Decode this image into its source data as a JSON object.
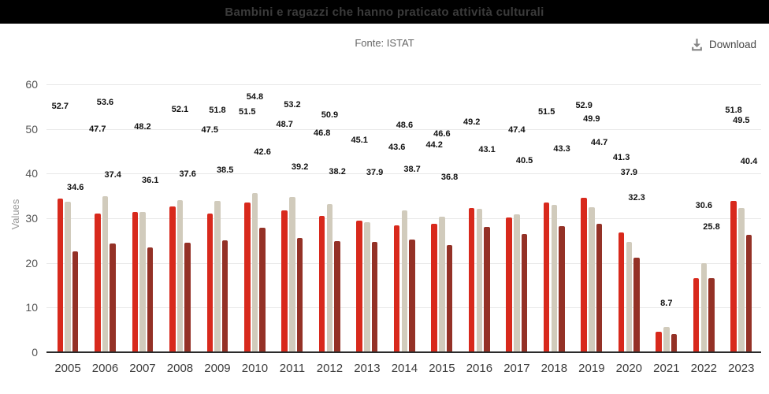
{
  "header": {
    "title": "Bambini e ragazzi che hanno praticato attività culturali"
  },
  "meta": {
    "source": "Fonte: ISTAT"
  },
  "toolbar": {
    "download_label": "Download",
    "download_icon": "download-tray-arrow"
  },
  "colors": {
    "title_bar_bg": "#000000",
    "title_text": "#3b3b3b",
    "series_red": "#d8291c",
    "series_beige": "#d1cbbc",
    "series_brown": "#943126",
    "gridline": "#e8e8e8",
    "axis_line": "#2b2b2b",
    "ytick_text": "#555555",
    "xtick_text": "#3c3c3c",
    "ylabel_text": "#999999",
    "source_text": "#666666",
    "data_label_text": "#111111"
  },
  "chart_data": {
    "type": "bar",
    "title": "Bambini e ragazzi che hanno praticato attività culturali",
    "subtitle": "Fonte: ISTAT",
    "xlabel": "",
    "ylabel": "Values",
    "ylim": [
      0,
      60
    ],
    "yticks": [
      0,
      10,
      20,
      30,
      40,
      50,
      60
    ],
    "grid": true,
    "legend_position": "none",
    "categories": [
      2005,
      2006,
      2007,
      2008,
      2009,
      2010,
      2011,
      2012,
      2013,
      2014,
      2015,
      2016,
      2017,
      2018,
      2019,
      2020,
      2021,
      2022,
      2023
    ],
    "series": [
      {
        "name": "red",
        "color": "#d8291c",
        "data_labels": [
          52.7,
          47.7,
          null,
          null,
          47.5,
          51.5,
          48.7,
          46.8,
          45.1,
          43.6,
          44.2,
          49.2,
          null,
          51.5,
          52.9,
          41.3,
          null,
          null,
          51.8
        ],
        "bar_tops": [
          34.4,
          31.1,
          31.4,
          32.6,
          31.0,
          33.6,
          31.8,
          30.5,
          29.4,
          28.4,
          28.8,
          32.3,
          30.2,
          33.6,
          34.5,
          26.9,
          4.5,
          16.6,
          33.8
        ]
      },
      {
        "name": "beige",
        "color": "#d1cbbc",
        "data_labels": [
          null,
          53.6,
          48.2,
          52.1,
          51.8,
          54.8,
          53.2,
          50.9,
          null,
          48.6,
          46.6,
          null,
          47.4,
          null,
          49.9,
          37.9,
          8.7,
          30.6,
          49.5
        ],
        "bar_tops": [
          33.7,
          34.9,
          31.4,
          34.0,
          33.8,
          35.7,
          34.7,
          33.2,
          29.2,
          31.7,
          30.4,
          32.1,
          30.9,
          33.0,
          32.5,
          24.7,
          5.7,
          20.0,
          32.3
        ]
      },
      {
        "name": "brown",
        "color": "#943126",
        "data_labels": [
          34.6,
          37.4,
          36.1,
          37.6,
          38.5,
          42.6,
          39.2,
          38.2,
          37.9,
          38.7,
          36.8,
          43.1,
          40.5,
          43.3,
          44.7,
          32.3,
          null,
          25.8,
          40.4
        ],
        "bar_tops": [
          22.6,
          24.4,
          23.5,
          24.5,
          25.1,
          27.8,
          25.6,
          24.9,
          24.7,
          25.2,
          24.0,
          28.1,
          26.4,
          28.2,
          28.8,
          21.1,
          4.0,
          16.5,
          26.3
        ]
      }
    ]
  }
}
